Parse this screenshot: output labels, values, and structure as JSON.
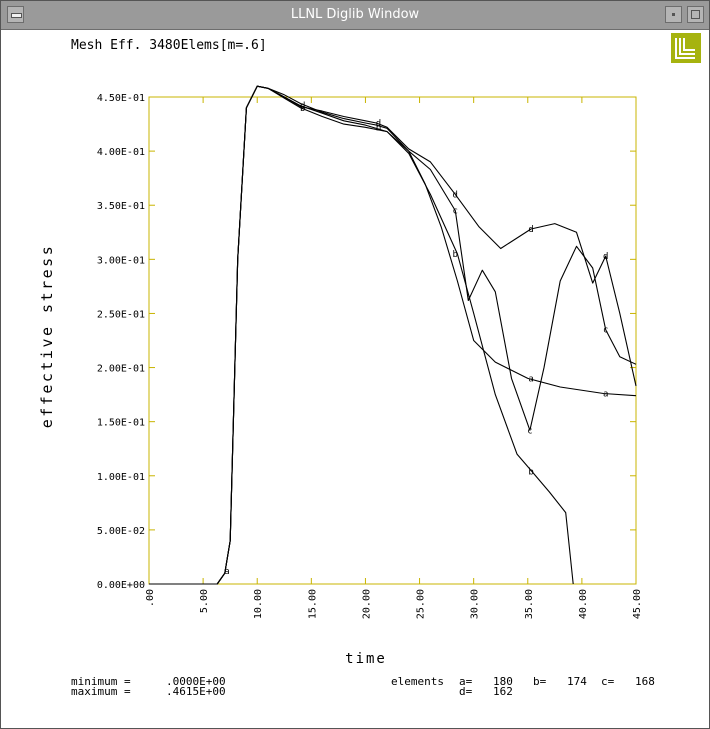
{
  "window": {
    "title": "LLNL Diglib Window"
  },
  "icons": {
    "menu": "window-menu-icon",
    "minimize": "minimize-icon",
    "maximize": "maximize-icon",
    "logo": "llnl-logo-icon"
  },
  "colors": {
    "titlebar": "#9a9a9a",
    "frame": "#c8b400",
    "logo": "#a6b30f",
    "curves": "#000000"
  },
  "chart_data": {
    "type": "line",
    "title": "Mesh Eff. 3480Elems[m=.6]",
    "xlabel": "time",
    "ylabel": "effective stress",
    "xlim": [
      0,
      45
    ],
    "ylim": [
      0,
      0.45
    ],
    "x_ticks": [
      0,
      5,
      10,
      15,
      20,
      25,
      30,
      35,
      40,
      45
    ],
    "x_tick_labels": [
      ".00",
      "5.00",
      "10.00",
      "15.00",
      "20.00",
      "25.00",
      "30.00",
      "35.00",
      "40.00",
      "45.00"
    ],
    "y_ticks": [
      0,
      0.05,
      0.1,
      0.15,
      0.2,
      0.25,
      0.3,
      0.35,
      0.4,
      0.45
    ],
    "y_tick_labels": [
      "0.00E+00",
      "5.00E-02",
      "1.00E-01",
      "1.50E-01",
      "2.00E-01",
      "2.50E-01",
      "3.00E-01",
      "3.50E-01",
      "4.00E-01",
      "4.50E-01"
    ],
    "grid": false,
    "series": [
      {
        "name": "a",
        "x": [
          0,
          6.3,
          7.0,
          7.5,
          8.2,
          9.0,
          10.0,
          11.0,
          12.5,
          14.0,
          16.0,
          18.0,
          20.0,
          21.0,
          22.0,
          24.0,
          25.5,
          27.0,
          28.5,
          30.0,
          32.0,
          35.0,
          38.0,
          42.0,
          45.0
        ],
        "y": [
          0,
          0,
          0.01,
          0.04,
          0.3,
          0.44,
          0.46,
          0.458,
          0.449,
          0.44,
          0.432,
          0.425,
          0.422,
          0.42,
          0.418,
          0.4,
          0.37,
          0.33,
          0.28,
          0.225,
          0.205,
          0.19,
          0.182,
          0.176,
          0.174
        ],
        "markers": [
          {
            "x": 7.2,
            "y": 0.012
          },
          {
            "x": 35.3,
            "y": 0.19
          },
          {
            "x": 42.2,
            "y": 0.176
          }
        ]
      },
      {
        "name": "b",
        "x": [
          0,
          6.3,
          7.0,
          7.5,
          8.2,
          9.0,
          10.0,
          11.0,
          12.5,
          14.0,
          16.0,
          18.0,
          20.0,
          21.0,
          22.0,
          24.0,
          26.0,
          28.5,
          30.0,
          32.0,
          34.0,
          35.3,
          37.0,
          38.5,
          39.2
        ],
        "y": [
          0,
          0,
          0.01,
          0.04,
          0.3,
          0.44,
          0.46,
          0.458,
          0.45,
          0.442,
          0.435,
          0.428,
          0.424,
          0.421,
          0.418,
          0.398,
          0.36,
          0.305,
          0.25,
          0.175,
          0.12,
          0.105,
          0.085,
          0.066,
          0
        ],
        "markers": [
          {
            "x": 14.2,
            "y": 0.44
          },
          {
            "x": 21.2,
            "y": 0.422
          },
          {
            "x": 28.3,
            "y": 0.305
          },
          {
            "x": 35.3,
            "y": 0.104
          }
        ]
      },
      {
        "name": "c",
        "x": [
          0,
          6.3,
          7.0,
          7.5,
          8.2,
          9.0,
          10.0,
          11.0,
          12.5,
          14.0,
          16.0,
          18.0,
          20.0,
          21.0,
          22.0,
          24.0,
          26.0,
          28.3,
          29.5,
          30.8,
          32.0,
          33.5,
          35.2,
          36.5,
          38.0,
          39.5,
          41.0,
          42.2,
          43.5,
          45.0
        ],
        "y": [
          0,
          0,
          0.01,
          0.04,
          0.3,
          0.44,
          0.46,
          0.458,
          0.452,
          0.444,
          0.436,
          0.43,
          0.426,
          0.424,
          0.421,
          0.4,
          0.383,
          0.345,
          0.262,
          0.29,
          0.27,
          0.19,
          0.142,
          0.2,
          0.28,
          0.312,
          0.292,
          0.235,
          0.21,
          0.203
        ],
        "markers": [
          {
            "x": 28.3,
            "y": 0.345
          },
          {
            "x": 35.2,
            "y": 0.142
          },
          {
            "x": 42.2,
            "y": 0.235
          }
        ]
      },
      {
        "name": "d",
        "x": [
          0,
          6.3,
          7.0,
          7.5,
          8.2,
          9.0,
          10.0,
          11.0,
          12.5,
          14.0,
          16.0,
          18.0,
          20.0,
          21.0,
          22.0,
          24.0,
          26.0,
          28.3,
          30.5,
          32.5,
          35.3,
          37.5,
          39.5,
          41.0,
          42.2,
          43.5,
          45.0
        ],
        "y": [
          0,
          0,
          0.01,
          0.04,
          0.3,
          0.44,
          0.46,
          0.458,
          0.45,
          0.441,
          0.437,
          0.432,
          0.428,
          0.426,
          0.422,
          0.402,
          0.39,
          0.36,
          0.33,
          0.31,
          0.328,
          0.333,
          0.325,
          0.278,
          0.303,
          0.25,
          0.183
        ],
        "markers": [
          {
            "x": 14.2,
            "y": 0.442
          },
          {
            "x": 21.2,
            "y": 0.426
          },
          {
            "x": 28.3,
            "y": 0.36
          },
          {
            "x": 35.3,
            "y": 0.328
          },
          {
            "x": 42.2,
            "y": 0.303
          }
        ]
      }
    ],
    "summary": {
      "min_label": "minimum =",
      "min_value": ".0000E+00",
      "max_label": "maximum =",
      "max_value": ".4615E+00",
      "elements_label": "elements",
      "element_ids": [
        {
          "key": "a=",
          "value": "180"
        },
        {
          "key": "b=",
          "value": "174"
        },
        {
          "key": "c=",
          "value": "168"
        },
        {
          "key": "d=",
          "value": "162"
        }
      ]
    }
  }
}
